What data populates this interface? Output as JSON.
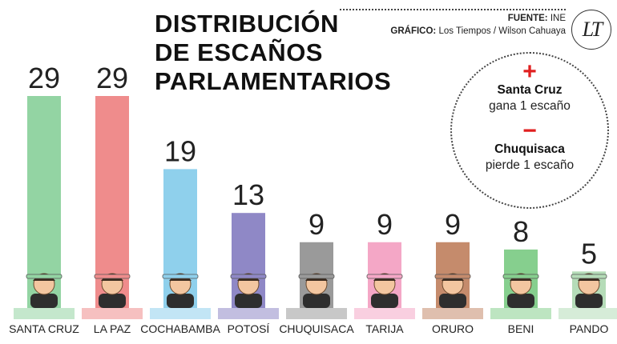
{
  "header": {
    "title_lines": [
      "DISTRIBUCIÓN",
      "DE ESCAÑOS",
      "PARLAMENTARIOS"
    ],
    "source_label": "FUENTE:",
    "source_value": "INE",
    "graphic_label": "GRÁFICO:",
    "graphic_value": "Los Tiempos / Wilson Cahuaya",
    "logo_text": "LT"
  },
  "notes": {
    "gain_sign": "+",
    "gain_name": "Santa Cruz",
    "gain_text": "gana 1 escaño",
    "loss_sign": "−",
    "loss_name": "Chuquisaca",
    "loss_text": "pierde 1 escaño"
  },
  "chart_data": {
    "type": "bar",
    "title": "DISTRIBUCIÓN DE ESCAÑOS PARLAMENTARIOS",
    "categories": [
      "SANTA CRUZ",
      "LA PAZ",
      "COCHABAMBA",
      "POTOSÍ",
      "CHUQUISACA",
      "TARIJA",
      "ORURO",
      "BENI",
      "PANDO"
    ],
    "values": [
      29,
      29,
      19,
      13,
      9,
      9,
      9,
      8,
      5
    ],
    "colors": [
      "#93d4a3",
      "#ef8c8c",
      "#8fd0ec",
      "#8f88c6",
      "#9a9a9a",
      "#f4a7c6",
      "#c58b6c",
      "#86cf8e",
      "#b5dcb8"
    ],
    "ylim": [
      0,
      29
    ],
    "xlabel": "",
    "ylabel": "",
    "grid": false,
    "legend": "none",
    "data_labels": true
  }
}
